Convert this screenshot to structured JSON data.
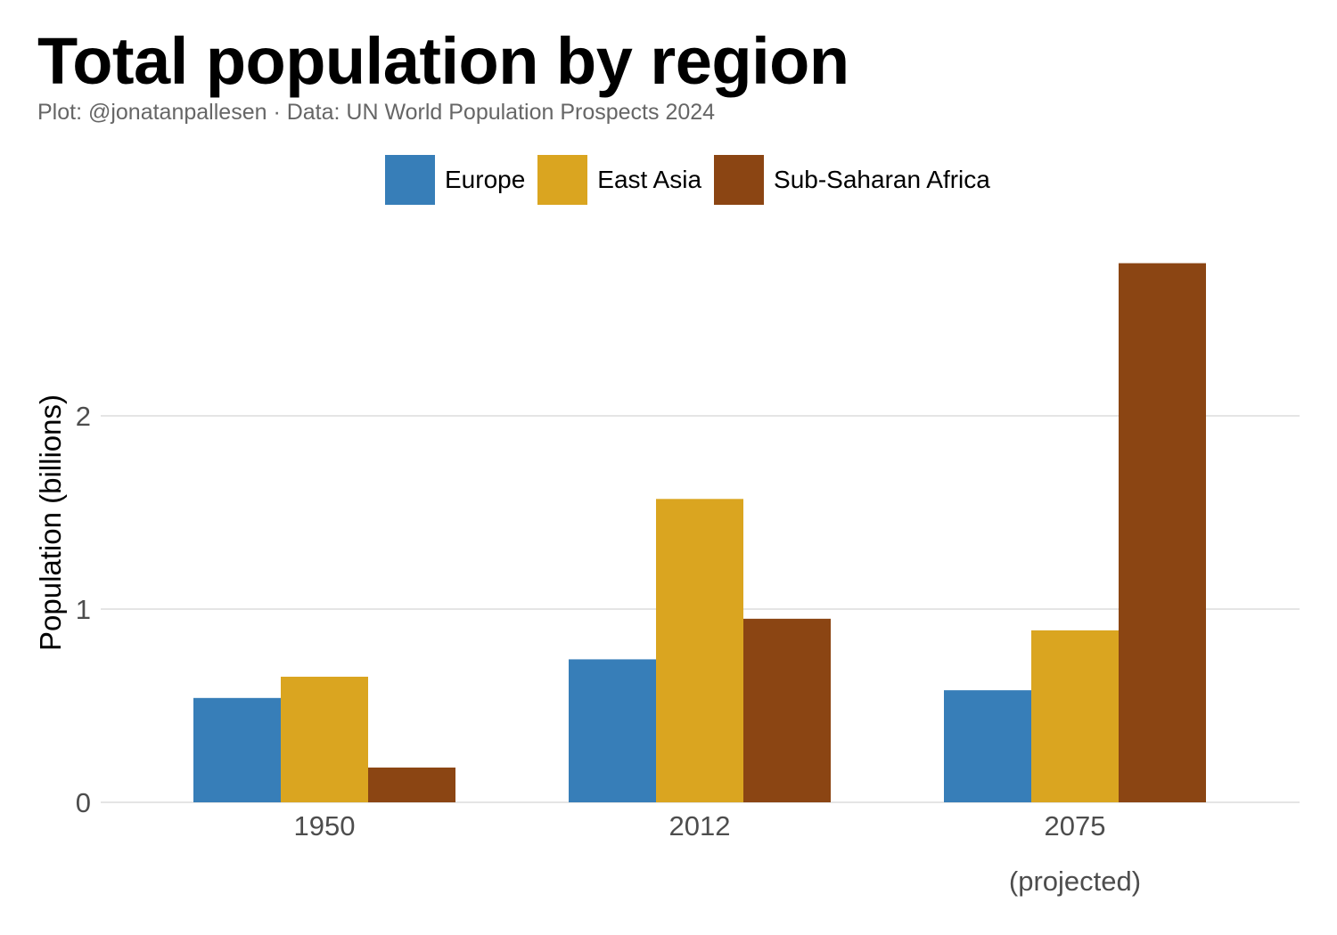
{
  "title": "Total population by region",
  "subtitle": "Plot: @jonatanpallesen · Data: UN World Population Prospects 2024",
  "legend": [
    {
      "label": "Europe",
      "color": "#377EB8"
    },
    {
      "label": "East Asia",
      "color": "#DAA520"
    },
    {
      "label": "Sub-Saharan Africa",
      "color": "#8B4513"
    }
  ],
  "chart_data": {
    "type": "bar",
    "title": "Total population by region",
    "xlabel": "",
    "ylabel": "Population (billions)",
    "categories": [
      "1950",
      "2012",
      "2075"
    ],
    "category_sublabels": [
      "",
      "",
      "(projected)"
    ],
    "series": [
      {
        "name": "Europe",
        "color": "#377EB8",
        "values": [
          0.54,
          0.74,
          0.58
        ]
      },
      {
        "name": "East Asia",
        "color": "#DAA520",
        "values": [
          0.65,
          1.57,
          0.89
        ]
      },
      {
        "name": "Sub-Saharan Africa",
        "color": "#8B4513",
        "values": [
          0.18,
          0.95,
          2.79
        ]
      }
    ],
    "yticks": [
      0,
      1,
      2
    ],
    "ytick_labels": [
      "0",
      "1",
      "2"
    ],
    "ylim": [
      0,
      2.9
    ],
    "grid": true,
    "legend_position": "top"
  }
}
